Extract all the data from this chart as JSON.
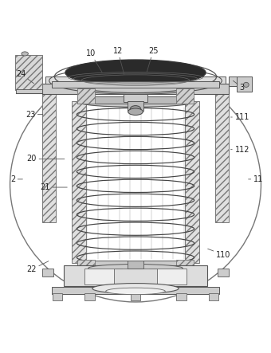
{
  "bg_color": "#ffffff",
  "lc": "#555555",
  "fig_width": 3.4,
  "fig_height": 4.43,
  "dpi": 100,
  "labels": {
    "24": [
      0.075,
      0.88,
      0.13,
      0.84
    ],
    "10": [
      0.335,
      0.955,
      0.38,
      0.88
    ],
    "12": [
      0.435,
      0.965,
      0.46,
      0.87
    ],
    "25": [
      0.565,
      0.965,
      0.54,
      0.88
    ],
    "3": [
      0.895,
      0.83,
      0.855,
      0.86
    ],
    "23": [
      0.11,
      0.73,
      0.165,
      0.73
    ],
    "111": [
      0.895,
      0.72,
      0.845,
      0.72
    ],
    "112": [
      0.895,
      0.6,
      0.845,
      0.6
    ],
    "20": [
      0.115,
      0.565,
      0.245,
      0.565
    ],
    "2": [
      0.045,
      0.49,
      0.09,
      0.49
    ],
    "21": [
      0.165,
      0.46,
      0.255,
      0.46
    ],
    "11": [
      0.955,
      0.49,
      0.91,
      0.49
    ],
    "22": [
      0.115,
      0.155,
      0.185,
      0.19
    ],
    "110": [
      0.825,
      0.21,
      0.76,
      0.235
    ]
  }
}
